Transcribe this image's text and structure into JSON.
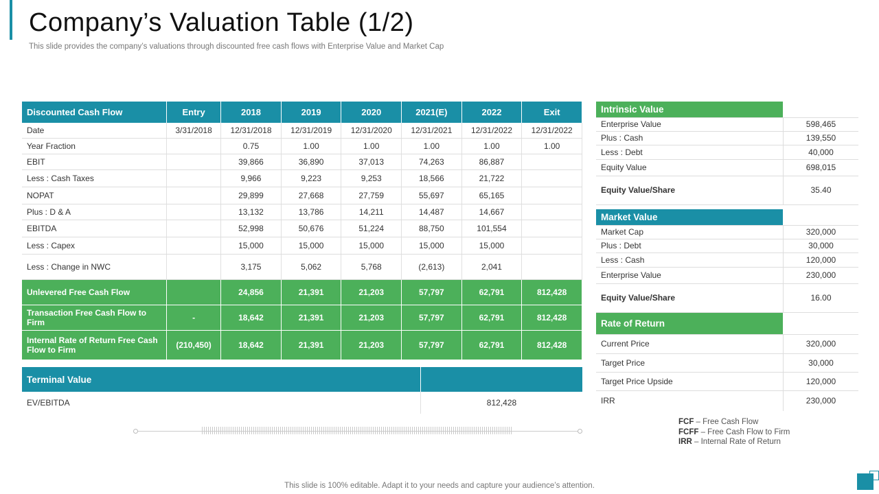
{
  "header": {
    "title": "Company’s Valuation Table (1/2)",
    "subtitle": "This slide provides the company’s valuations through discounted free cash flows with Enterprise Value and Market Cap"
  },
  "dcf": {
    "columns": [
      "Discounted Cash Flow",
      "Entry",
      "2018",
      "2019",
      "2020",
      "2021(E)",
      "2022",
      "Exit"
    ],
    "rows": [
      {
        "cells": [
          "Date",
          "3/31/2018",
          "12/31/2018",
          "12/31/2019",
          "12/31/2020",
          "12/31/2021",
          "12/31/2022",
          "12/31/2022"
        ]
      },
      {
        "cells": [
          "Year Fraction",
          "",
          "0.75",
          "1.00",
          "1.00",
          "1.00",
          "1.00",
          "1.00"
        ]
      },
      {
        "cells": [
          "EBIT",
          "",
          "39,866",
          "36,890",
          "37,013",
          "74,263",
          "86,887",
          ""
        ]
      },
      {
        "cells": [
          "Less : Cash Taxes",
          "",
          "9,966",
          "9,223",
          "9,253",
          "18,566",
          "21,722",
          ""
        ]
      },
      {
        "cells": [
          "NOPAT",
          "",
          "29,899",
          "27,668",
          "27,759",
          "55,697",
          "65,165",
          ""
        ]
      },
      {
        "cells": [
          "Plus : D & A",
          "",
          "13,132",
          "13,786",
          "14,211",
          "14,487",
          "14,667",
          ""
        ]
      },
      {
        "cells": [
          "EBITDA",
          "",
          "52,998",
          "50,676",
          "51,224",
          "88,750",
          "101,554",
          ""
        ]
      },
      {
        "cells": [
          "Less : Capex",
          "",
          "15,000",
          "15,000",
          "15,000",
          "15,000",
          "15,000",
          ""
        ]
      },
      {
        "cells": [
          "Less : Change in NWC",
          "",
          "3,175",
          "5,062",
          "5,768",
          "(2,613)",
          "2,041",
          ""
        ]
      }
    ],
    "green_rows": [
      {
        "cells": [
          "Unlevered Free Cash Flow",
          "",
          "24,856",
          "21,391",
          "21,203",
          "57,797",
          "62,791",
          "812,428"
        ]
      },
      {
        "cells": [
          "Transaction Free Cash Flow to Firm",
          "-",
          "18,642",
          "21,391",
          "21,203",
          "57,797",
          "62,791",
          "812,428"
        ]
      },
      {
        "cells": [
          "Internal Rate of Return Free Cash Flow to Firm",
          "(210,450)",
          "18,642",
          "21,391",
          "21,203",
          "57,797",
          "62,791",
          "812,428"
        ]
      }
    ]
  },
  "terminal": {
    "heading": "Terminal Value",
    "label": "EV/EBITDA",
    "value": "812,428"
  },
  "intrinsic": {
    "heading": "Intrinsic Value",
    "rows": [
      {
        "label": "Enterprise Value",
        "value": "598,465"
      },
      {
        "label": "Plus : Cash",
        "value": "139,550"
      },
      {
        "label": "Less : Debt",
        "value": "40,000"
      },
      {
        "label": "Equity Value",
        "value": "698,015"
      }
    ],
    "per_share": {
      "label": "Equity  Value/Share",
      "value": "35.40"
    }
  },
  "market": {
    "heading": "Market Value",
    "rows": [
      {
        "label": "Market Cap",
        "value": "320,000"
      },
      {
        "label": "Plus : Debt",
        "value": "30,000"
      },
      {
        "label": "Less : Cash",
        "value": "120,000"
      },
      {
        "label": "Enterprise Value",
        "value": "230,000"
      }
    ],
    "per_share": {
      "label": "Equity  Value/Share",
      "value": "16.00"
    }
  },
  "return": {
    "heading": "Rate of Return",
    "rows": [
      {
        "label": "Current Price",
        "value": "320,000"
      },
      {
        "label": "Target Price",
        "value": "30,000"
      },
      {
        "label": "Target Price Upside",
        "value": "120,000"
      },
      {
        "label": "IRR",
        "value": "230,000"
      }
    ]
  },
  "legend": [
    {
      "abbr": "FCF",
      "text": " – Free Cash Flow"
    },
    {
      "abbr": "FCFF",
      "text": "  – Free Cash Flow to Firm"
    },
    {
      "abbr": "IRR",
      "text": " – Internal Rate of Return"
    }
  ],
  "footer": "This slide is 100% editable. Adapt it to your needs and capture your audience’s attention."
}
